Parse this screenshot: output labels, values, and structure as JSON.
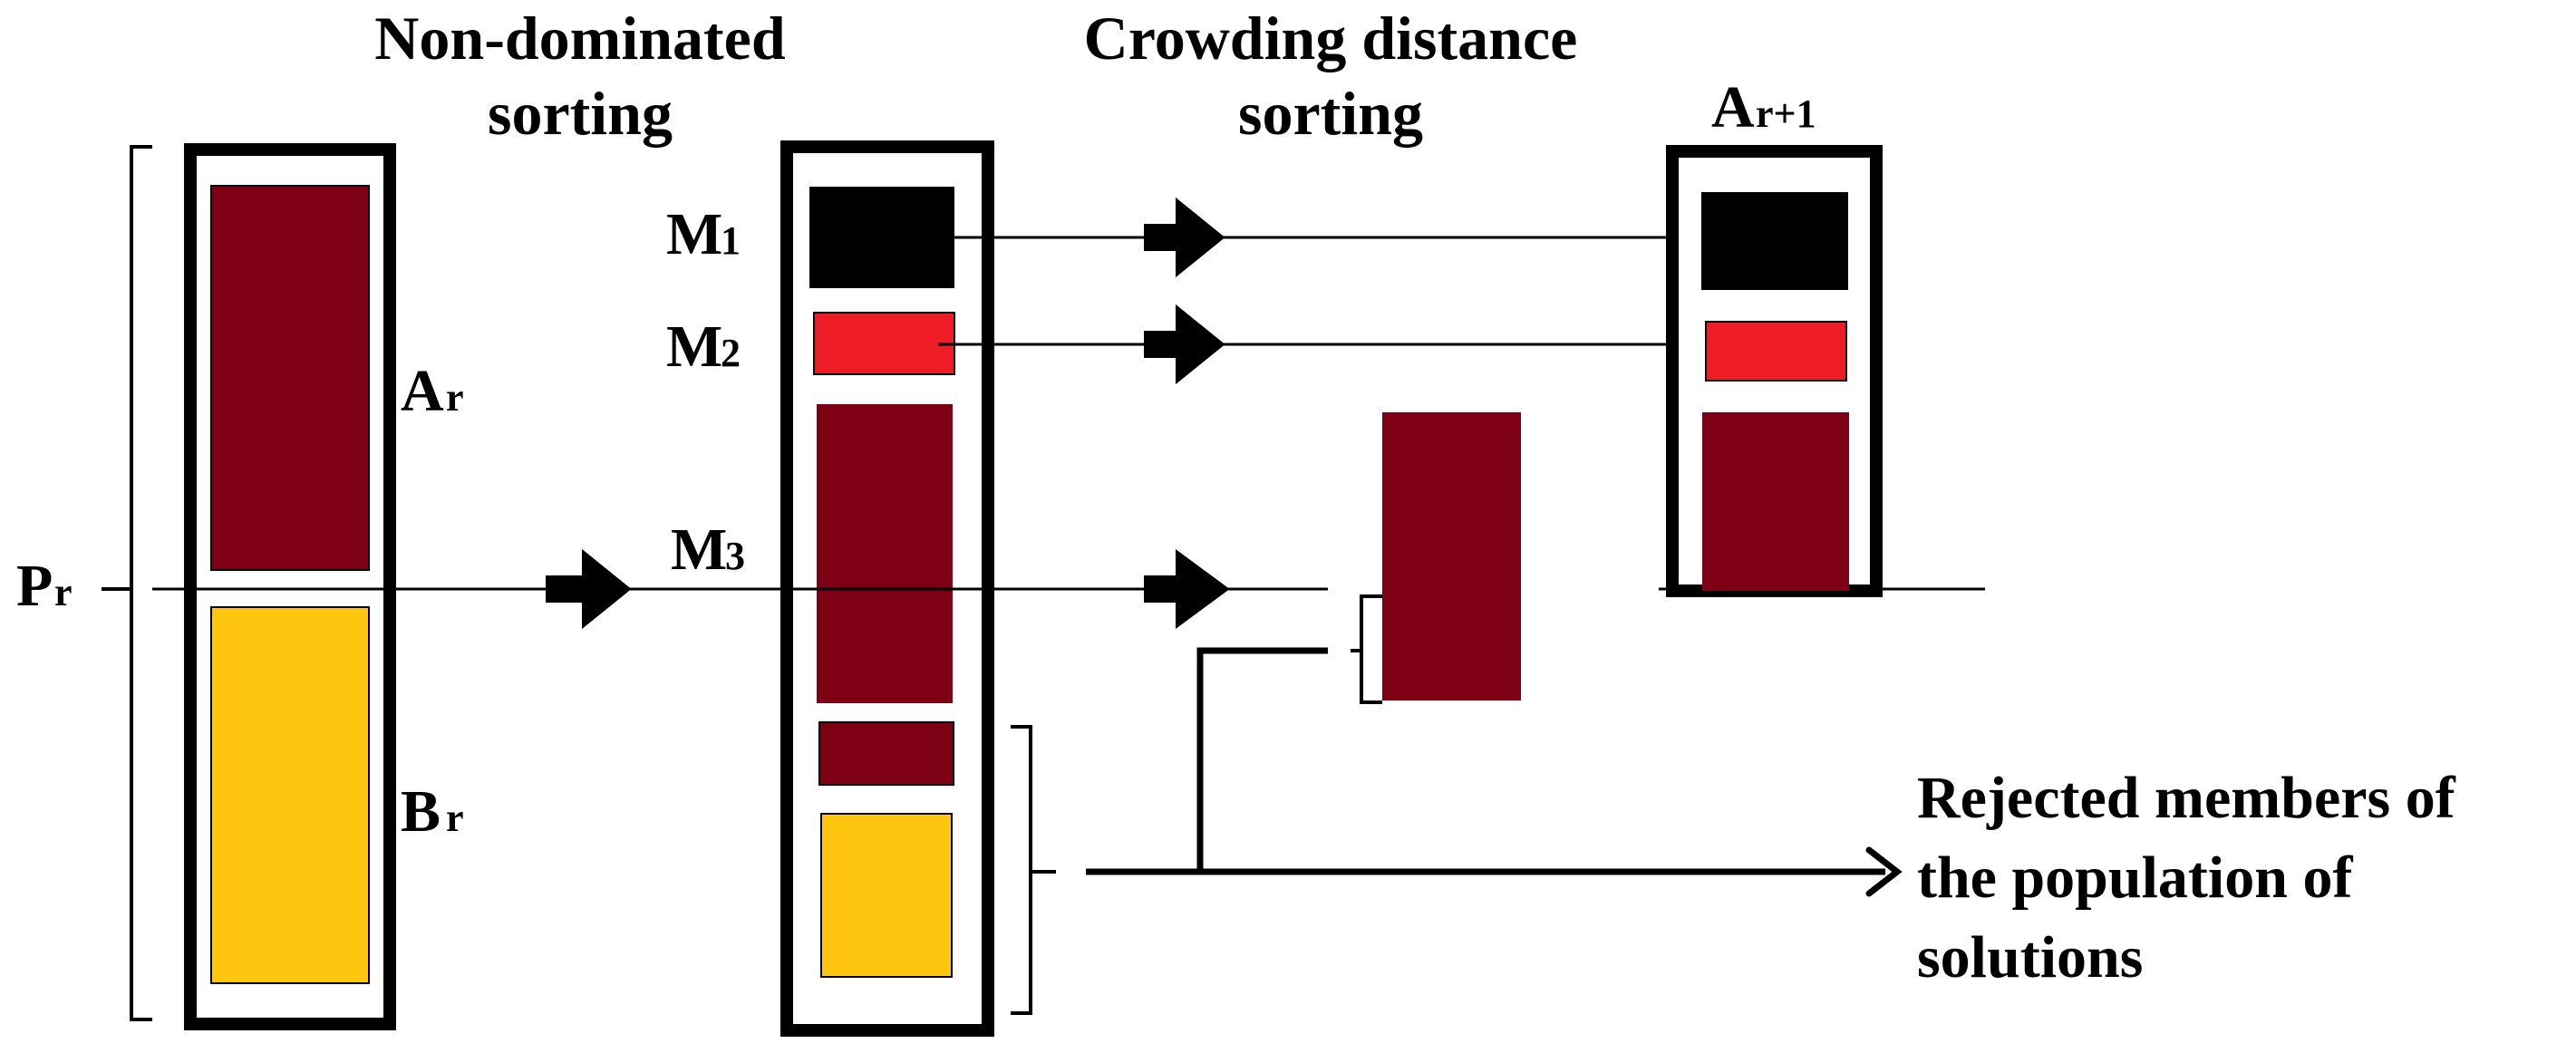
{
  "headings": {
    "nondom_line1": "Non-dominated",
    "nondom_line2": "sorting",
    "crowd_line1": "Crowding distance",
    "crowd_line2": "sorting"
  },
  "labels": {
    "p_main": "P",
    "p_sub": "r",
    "a_main": "A",
    "a_sub": "r",
    "b_main": "B",
    "b_sub": "r",
    "m1_main": "M",
    "m1_sub": "1",
    "m2_main": "M",
    "m2_sub": "2",
    "m3_main": "M",
    "m3_sub": "3",
    "anext_main": "A",
    "anext_sub": "r+1"
  },
  "rejected": {
    "line1": "Rejected members of",
    "line2": "the population of",
    "line3": "solutions"
  },
  "colors": {
    "dark_red": "#7f0015",
    "yellow": "#ffc60f",
    "red": "#ee1c25",
    "black": "#000000"
  }
}
